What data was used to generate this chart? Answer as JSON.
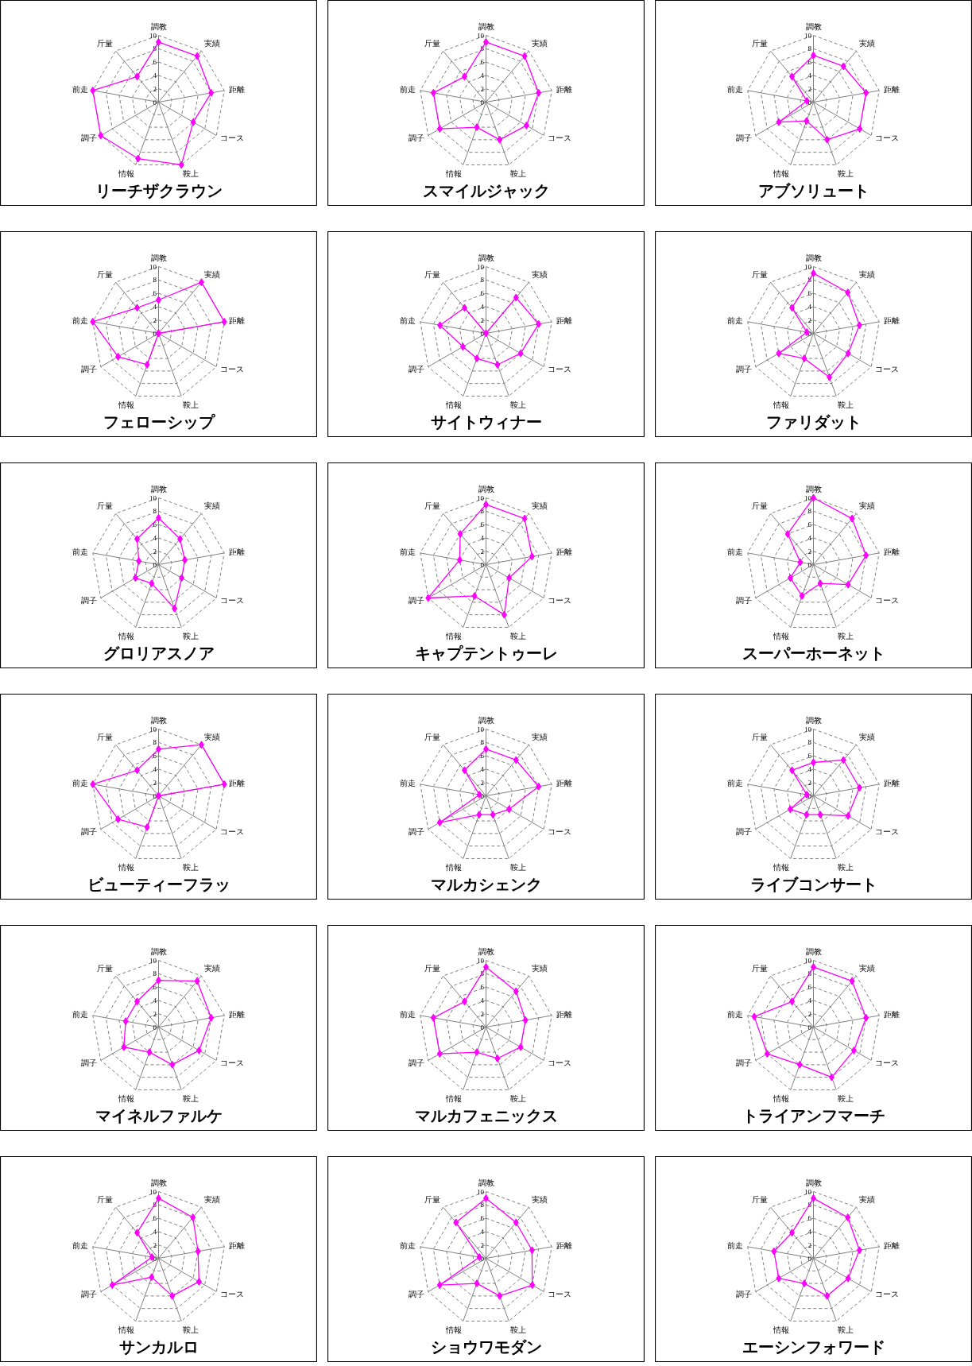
{
  "chart_data": [
    {
      "type": "radar",
      "title": "リーチザクラウン",
      "categories": [
        "調教",
        "実績",
        "距離",
        "コース",
        "鞍上",
        "情報",
        "調子",
        "前走",
        "斤量"
      ],
      "series": [
        {
          "color": "#ff00ff",
          "values": [
            9,
            9,
            8,
            6,
            10,
            9,
            10,
            10,
            5
          ]
        }
      ],
      "ylim": [
        0,
        10
      ],
      "yticks": [
        0,
        2,
        4,
        6,
        8,
        10
      ],
      "grid": true,
      "marker": "diamond"
    },
    {
      "type": "radar",
      "title": "スマイルジャック",
      "categories": [
        "調教",
        "実績",
        "距離",
        "コース",
        "鞍上",
        "情報",
        "調子",
        "前走",
        "斤量"
      ],
      "series": [
        {
          "color": "#ff00ff",
          "values": [
            9,
            9,
            8,
            7,
            6,
            4,
            8,
            8,
            5
          ]
        }
      ],
      "ylim": [
        0,
        10
      ],
      "yticks": [
        0,
        2,
        4,
        6,
        8,
        10
      ],
      "grid": true,
      "marker": "diamond"
    },
    {
      "type": "radar",
      "title": "アブソリュート",
      "categories": [
        "調教",
        "実績",
        "距離",
        "コース",
        "鞍上",
        "情報",
        "調子",
        "前走",
        "斤量"
      ],
      "series": [
        {
          "color": "#ff00ff",
          "values": [
            7,
            7,
            8,
            8,
            6,
            3,
            6,
            1,
            5
          ]
        }
      ],
      "ylim": [
        0,
        10
      ],
      "yticks": [
        0,
        2,
        4,
        6,
        8,
        10
      ],
      "grid": true,
      "marker": "diamond"
    },
    {
      "type": "radar",
      "title": "フェローシップ",
      "categories": [
        "調教",
        "実績",
        "距離",
        "コース",
        "鞍上",
        "情報",
        "調子",
        "前走",
        "斤量"
      ],
      "series": [
        {
          "color": "#ff00ff",
          "values": [
            5,
            10,
            10,
            0,
            0,
            5,
            7,
            10,
            5
          ]
        }
      ],
      "ylim": [
        0,
        10
      ],
      "yticks": [
        0,
        2,
        4,
        6,
        8,
        10
      ],
      "grid": true,
      "marker": "diamond"
    },
    {
      "type": "radar",
      "title": "サイトウィナー",
      "categories": [
        "調教",
        "実績",
        "距離",
        "コース",
        "鞍上",
        "情報",
        "調子",
        "前走",
        "斤量"
      ],
      "series": [
        {
          "color": "#ff00ff",
          "values": [
            0,
            7,
            8,
            6,
            5,
            4,
            4,
            7,
            5
          ]
        }
      ],
      "ylim": [
        0,
        10
      ],
      "yticks": [
        0,
        2,
        4,
        6,
        8,
        10
      ],
      "grid": true,
      "marker": "diamond"
    },
    {
      "type": "radar",
      "title": "ファリダット",
      "categories": [
        "調教",
        "実績",
        "距離",
        "コース",
        "鞍上",
        "情報",
        "調子",
        "前走",
        "斤量"
      ],
      "series": [
        {
          "color": "#ff00ff",
          "values": [
            9,
            8,
            7,
            6,
            7,
            4,
            6,
            1,
            5
          ]
        }
      ],
      "ylim": [
        0,
        10
      ],
      "yticks": [
        0,
        2,
        4,
        6,
        8,
        10
      ],
      "grid": true,
      "marker": "diamond"
    },
    {
      "type": "radar",
      "title": "グロリアスノア",
      "categories": [
        "調教",
        "実績",
        "距離",
        "コース",
        "鞍上",
        "情報",
        "調子",
        "前走",
        "斤量"
      ],
      "series": [
        {
          "color": "#ff00ff",
          "values": [
            7,
            5,
            4,
            4,
            7,
            3,
            4,
            3,
            5
          ]
        }
      ],
      "ylim": [
        0,
        10
      ],
      "yticks": [
        0,
        2,
        4,
        6,
        8,
        10
      ],
      "grid": true,
      "marker": "diamond"
    },
    {
      "type": "radar",
      "title": "キャプテントゥーレ",
      "categories": [
        "調教",
        "実績",
        "距離",
        "コース",
        "鞍上",
        "情報",
        "調子",
        "前走",
        "斤量"
      ],
      "series": [
        {
          "color": "#ff00ff",
          "values": [
            9,
            9,
            7,
            4,
            8,
            5,
            10,
            4,
            6
          ]
        }
      ],
      "ylim": [
        0,
        10
      ],
      "yticks": [
        0,
        2,
        4,
        6,
        8,
        10
      ],
      "grid": true,
      "marker": "diamond"
    },
    {
      "type": "radar",
      "title": "スーパーホーネット",
      "categories": [
        "調教",
        "実績",
        "距離",
        "コース",
        "鞍上",
        "情報",
        "調子",
        "前走",
        "斤量"
      ],
      "series": [
        {
          "color": "#ff00ff",
          "values": [
            10,
            9,
            8,
            6,
            3,
            5,
            4,
            2,
            6
          ]
        }
      ],
      "ylim": [
        0,
        10
      ],
      "yticks": [
        0,
        2,
        4,
        6,
        8,
        10
      ],
      "grid": true,
      "marker": "diamond"
    },
    {
      "type": "radar",
      "title": "ビューティーフラッ",
      "categories": [
        "調教",
        "実績",
        "距離",
        "コース",
        "鞍上",
        "情報",
        "調子",
        "前走",
        "斤量"
      ],
      "series": [
        {
          "color": "#ff00ff",
          "values": [
            7,
            10,
            10,
            0,
            0,
            5,
            7,
            10,
            5
          ]
        }
      ],
      "ylim": [
        0,
        10
      ],
      "yticks": [
        0,
        2,
        4,
        6,
        8,
        10
      ],
      "grid": true,
      "marker": "diamond"
    },
    {
      "type": "radar",
      "title": "マルカシェンク",
      "categories": [
        "調教",
        "実績",
        "距離",
        "コース",
        "鞍上",
        "情報",
        "調子",
        "前走",
        "斤量"
      ],
      "series": [
        {
          "color": "#ff00ff",
          "values": [
            7,
            7,
            8,
            4,
            3,
            3,
            8,
            1,
            5
          ]
        }
      ],
      "ylim": [
        0,
        10
      ],
      "yticks": [
        0,
        2,
        4,
        6,
        8,
        10
      ],
      "grid": true,
      "marker": "diamond"
    },
    {
      "type": "radar",
      "title": "ライブコンサート",
      "categories": [
        "調教",
        "実績",
        "距離",
        "コース",
        "鞍上",
        "情報",
        "調子",
        "前走",
        "斤量"
      ],
      "series": [
        {
          "color": "#ff00ff",
          "values": [
            5,
            7,
            7,
            6,
            3,
            3,
            4,
            1,
            5
          ]
        }
      ],
      "ylim": [
        0,
        10
      ],
      "yticks": [
        0,
        2,
        4,
        6,
        8,
        10
      ],
      "grid": true,
      "marker": "diamond"
    },
    {
      "type": "radar",
      "title": "マイネルファルケ",
      "categories": [
        "調教",
        "実績",
        "距離",
        "コース",
        "鞍上",
        "情報",
        "調子",
        "前走",
        "斤量"
      ],
      "series": [
        {
          "color": "#ff00ff",
          "values": [
            7,
            9,
            8,
            7,
            6,
            4,
            6,
            5,
            5
          ]
        }
      ],
      "ylim": [
        0,
        10
      ],
      "yticks": [
        0,
        2,
        4,
        6,
        8,
        10
      ],
      "grid": true,
      "marker": "diamond"
    },
    {
      "type": "radar",
      "title": "マルカフェニックス",
      "categories": [
        "調教",
        "実績",
        "距離",
        "コース",
        "鞍上",
        "情報",
        "調子",
        "前走",
        "斤量"
      ],
      "series": [
        {
          "color": "#ff00ff",
          "values": [
            9,
            7,
            6,
            6,
            5,
            4,
            8,
            8,
            5
          ]
        }
      ],
      "ylim": [
        0,
        10
      ],
      "yticks": [
        0,
        2,
        4,
        6,
        8,
        10
      ],
      "grid": true,
      "marker": "diamond"
    },
    {
      "type": "radar",
      "title": "トライアンフマーチ",
      "categories": [
        "調教",
        "実績",
        "距離",
        "コース",
        "鞍上",
        "情報",
        "調子",
        "前走",
        "斤量"
      ],
      "series": [
        {
          "color": "#ff00ff",
          "values": [
            9,
            9,
            8,
            7,
            8,
            6,
            8,
            9,
            5
          ]
        }
      ],
      "ylim": [
        0,
        10
      ],
      "yticks": [
        0,
        2,
        4,
        6,
        8,
        10
      ],
      "grid": true,
      "marker": "diamond"
    },
    {
      "type": "radar",
      "title": "サンカルロ",
      "categories": [
        "調教",
        "実績",
        "距離",
        "コース",
        "鞍上",
        "情報",
        "調子",
        "前走",
        "斤量"
      ],
      "series": [
        {
          "color": "#ff00ff",
          "values": [
            9,
            8,
            6,
            7,
            6,
            3,
            8,
            1,
            5
          ]
        }
      ],
      "ylim": [
        0,
        10
      ],
      "yticks": [
        0,
        2,
        4,
        6,
        8,
        10
      ],
      "grid": true,
      "marker": "diamond"
    },
    {
      "type": "radar",
      "title": "ショウワモダン",
      "categories": [
        "調教",
        "実績",
        "距離",
        "コース",
        "鞍上",
        "情報",
        "調子",
        "前走",
        "斤量"
      ],
      "series": [
        {
          "color": "#ff00ff",
          "values": [
            9,
            7,
            7,
            8,
            6,
            4,
            8,
            1,
            7
          ]
        }
      ],
      "ylim": [
        0,
        10
      ],
      "yticks": [
        0,
        2,
        4,
        6,
        8,
        10
      ],
      "grid": true,
      "marker": "diamond"
    },
    {
      "type": "radar",
      "title": "エーシンフォワード",
      "categories": [
        "調教",
        "実績",
        "距離",
        "コース",
        "鞍上",
        "情報",
        "調子",
        "前走",
        "斤量"
      ],
      "series": [
        {
          "color": "#ff00ff",
          "values": [
            9,
            8,
            7,
            6,
            6,
            4,
            6,
            6,
            5
          ]
        }
      ],
      "ylim": [
        0,
        10
      ],
      "yticks": [
        0,
        2,
        4,
        6,
        8,
        10
      ],
      "grid": true,
      "marker": "diamond"
    }
  ]
}
